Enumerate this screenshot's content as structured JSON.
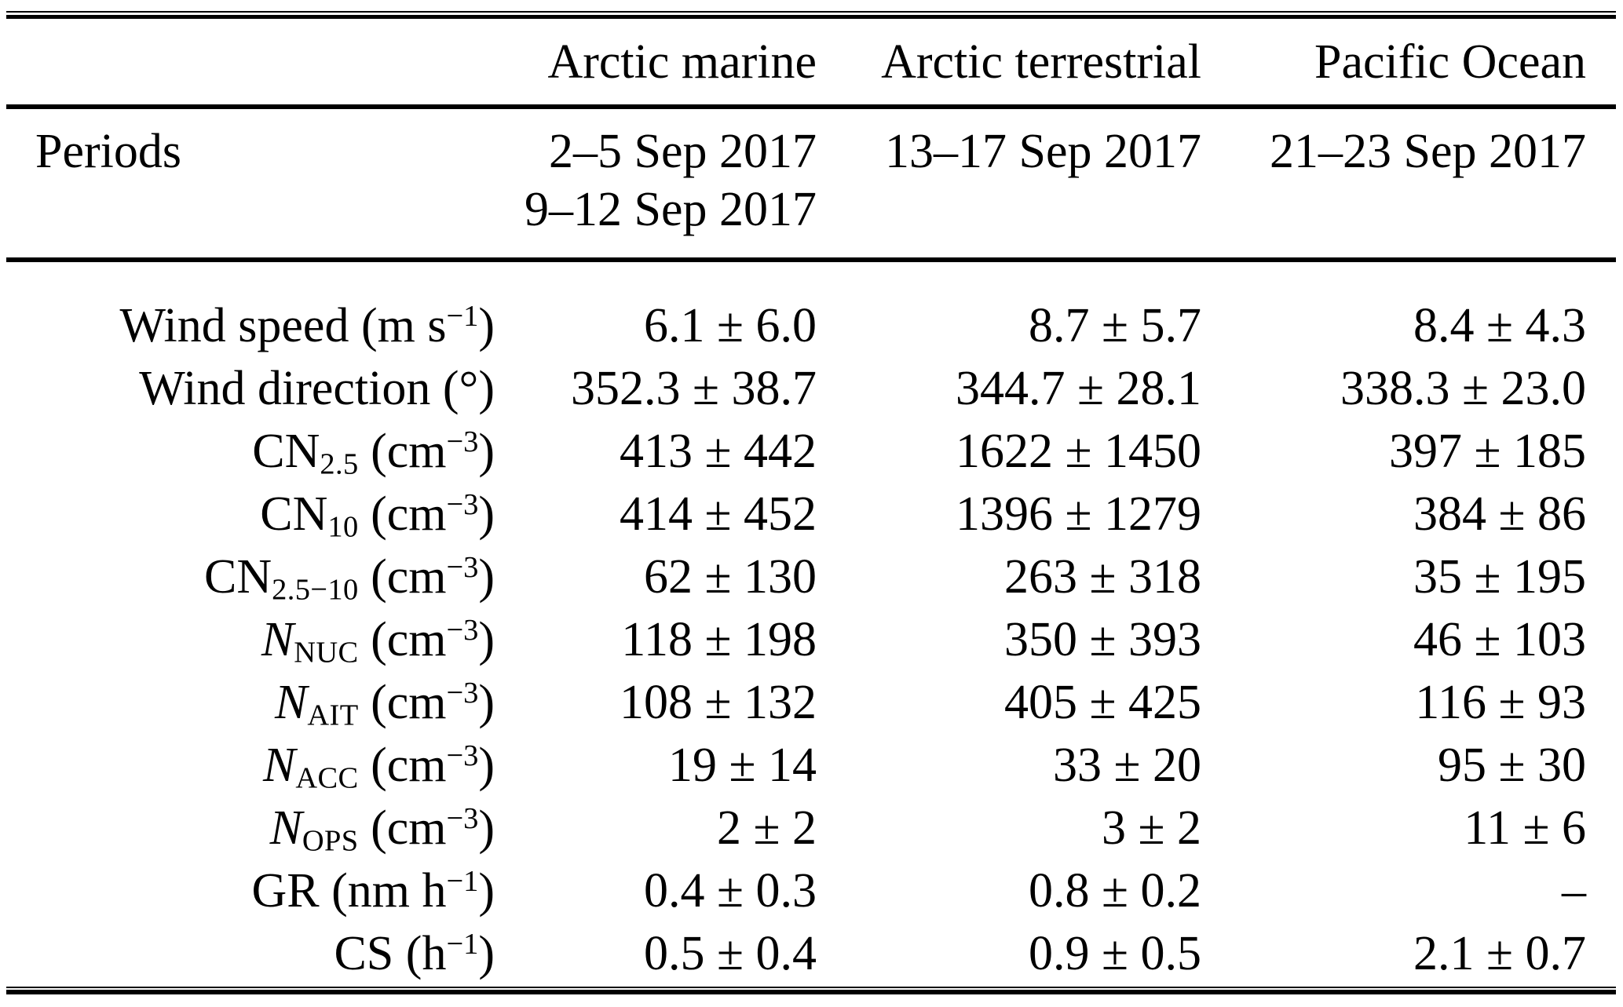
{
  "table": {
    "column_headers": [
      "Arctic marine",
      "Arctic terrestrial",
      "Pacific Ocean"
    ],
    "periods": {
      "label": "Periods",
      "arctic_marine": [
        "2–5 Sep 2017",
        "9–12 Sep 2017"
      ],
      "arctic_terrestrial": [
        "13–17 Sep 2017"
      ],
      "pacific_ocean": [
        "21–23 Sep 2017"
      ]
    },
    "rows": [
      {
        "base": "Wind speed",
        "italic": false,
        "sub": "",
        "unit": "m s",
        "exp": "−1",
        "values": [
          "6.1 ± 6.0",
          "8.7 ± 5.7",
          "8.4 ± 4.3"
        ]
      },
      {
        "base": "Wind direction",
        "italic": false,
        "sub": "",
        "unit": "°",
        "exp": "",
        "values": [
          "352.3 ± 38.7",
          "344.7 ± 28.1",
          "338.3 ± 23.0"
        ]
      },
      {
        "base": "CN",
        "italic": false,
        "sub": "2.5",
        "unit": "cm",
        "exp": "−3",
        "values": [
          "413 ± 442",
          "1622 ± 1450",
          "397 ± 185"
        ]
      },
      {
        "base": "CN",
        "italic": false,
        "sub": "10",
        "unit": "cm",
        "exp": "−3",
        "values": [
          "414 ± 452",
          "1396 ± 1279",
          "384 ± 86"
        ]
      },
      {
        "base": "CN",
        "italic": false,
        "sub": "2.5−10",
        "unit": "cm",
        "exp": "−3",
        "values": [
          "62 ± 130",
          "263 ± 318",
          "35 ± 195"
        ]
      },
      {
        "base": "N",
        "italic": true,
        "sub": "NUC",
        "unit": "cm",
        "exp": "−3",
        "values": [
          "118 ± 198",
          "350 ± 393",
          "46 ± 103"
        ]
      },
      {
        "base": "N",
        "italic": true,
        "sub": "AIT",
        "unit": "cm",
        "exp": "−3",
        "values": [
          "108 ± 132",
          "405 ± 425",
          "116 ± 93"
        ]
      },
      {
        "base": "N",
        "italic": true,
        "sub": "ACC",
        "unit": "cm",
        "exp": "−3",
        "values": [
          "19 ± 14",
          "33 ± 20",
          "95 ± 30"
        ]
      },
      {
        "base": "N",
        "italic": true,
        "sub": "OPS",
        "unit": "cm",
        "exp": "−3",
        "values": [
          "2 ± 2",
          "3 ± 2",
          "11 ± 6"
        ]
      },
      {
        "base": "GR",
        "italic": false,
        "sub": "",
        "unit": "nm h",
        "exp": "−1",
        "values": [
          "0.4 ± 0.3",
          "0.8 ± 0.2",
          "–"
        ]
      },
      {
        "base": "CS",
        "italic": false,
        "sub": "",
        "unit": "h",
        "exp": "−1",
        "values": [
          "0.5 ± 0.4",
          "0.9 ± 0.5",
          "2.1 ± 0.7"
        ]
      }
    ],
    "text_color": "#000000",
    "background_color": "#ffffff"
  }
}
